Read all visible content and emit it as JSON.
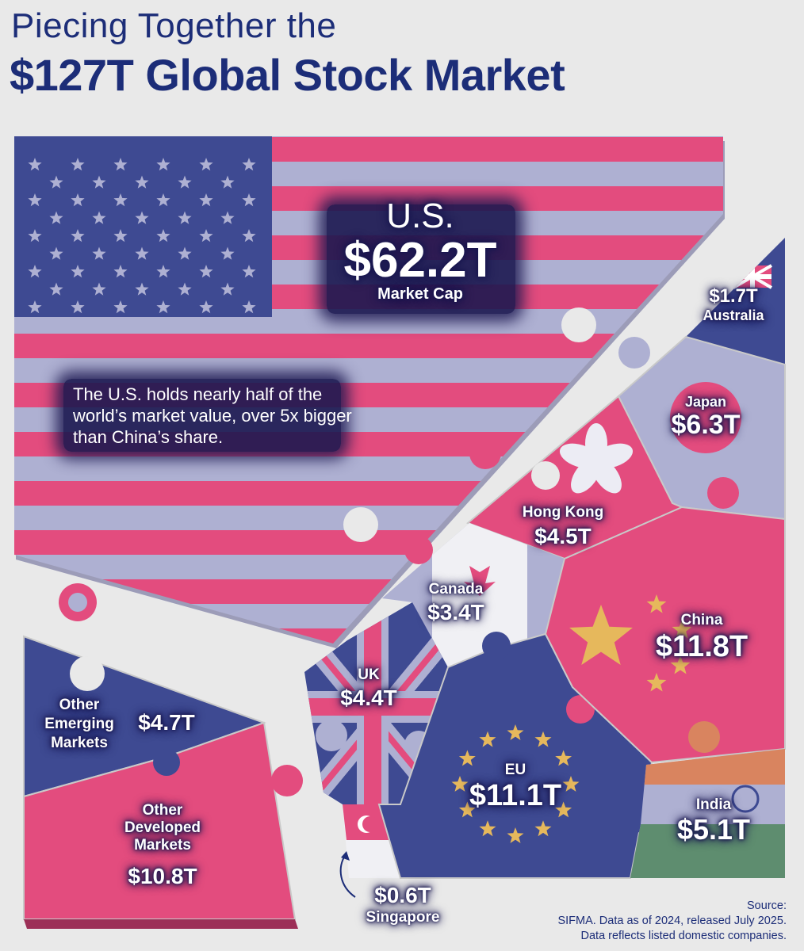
{
  "title": {
    "line1": "Piecing Together the",
    "line2": "$127T Global Stock Market"
  },
  "note": "The U.S. holds nearly half of the world’s market value, over 5x bigger than China’s share.",
  "source": {
    "line1": "Source:",
    "line2": "SIFMA. Data as of 2024, released July 2025.",
    "line3": "Data reflects listed domestic companies."
  },
  "colors": {
    "navy": "#3e4a92",
    "pink": "#e34c7e",
    "lavender": "#aeb0d2",
    "title": "#1c2d78",
    "india_orange": "#d9845f",
    "india_green": "#5e8d6f"
  },
  "chart_data": {
    "type": "treemap",
    "title": "Piecing Together the $127T Global Stock Market",
    "total": "$127T",
    "unit": "Market Cap",
    "categories": [
      "U.S.",
      "China",
      "EU",
      "Other Developed Markets",
      "Japan",
      "India",
      "Other Emerging Markets",
      "Hong Kong",
      "UK",
      "Canada",
      "Australia",
      "Singapore"
    ],
    "values": [
      62.2,
      11.8,
      11.1,
      10.8,
      6.3,
      5.1,
      4.7,
      4.5,
      4.4,
      3.4,
      1.7,
      0.6
    ],
    "labels": {
      "us": {
        "name": "U.S.",
        "value": "$62.2T",
        "sub": "Market Cap"
      },
      "china": {
        "name": "China",
        "value": "$11.8T"
      },
      "eu": {
        "name": "EU",
        "value": "$11.1T"
      },
      "odm": {
        "name": "Other Developed Markets",
        "value": "$10.8T"
      },
      "japan": {
        "name": "Japan",
        "value": "$6.3T"
      },
      "india": {
        "name": "India",
        "value": "$5.1T"
      },
      "oem": {
        "name": "Other Emerging Markets",
        "value": "$4.7T"
      },
      "hk": {
        "name": "Hong Kong",
        "value": "$4.5T"
      },
      "uk": {
        "name": "UK",
        "value": "$4.4T"
      },
      "canada": {
        "name": "Canada",
        "value": "$3.4T"
      },
      "australia": {
        "name": "Australia",
        "value": "$1.7T"
      },
      "singapore": {
        "name": "Singapore",
        "value": "$0.6T"
      }
    }
  }
}
